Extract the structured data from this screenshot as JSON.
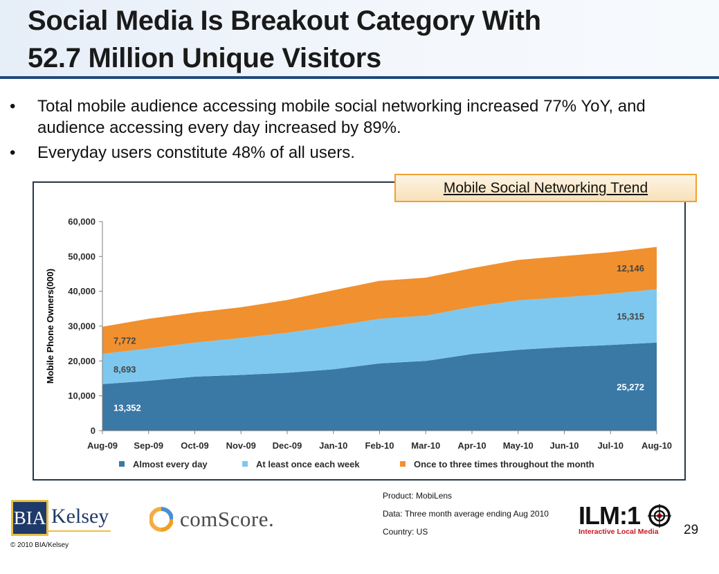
{
  "title": {
    "line1": "Social Media Is Breakout Category With",
    "line2": "52.7 Million Unique Visitors"
  },
  "bullets": [
    {
      "marker": "•",
      "text": "Total mobile audience accessing mobile social networking increased 77% YoY, and audience accessing every day increased by 89%."
    },
    {
      "marker": "•",
      "text": "Everyday users constitute 48% of all users."
    }
  ],
  "trend_box": "Mobile Social Networking Trend",
  "chart_data": {
    "type": "area",
    "stacked": true,
    "title": "Mobile Social Networking Trend",
    "xlabel": "",
    "ylabel": "Mobile Phone Owners(000)",
    "x": [
      "Aug-09",
      "Sep-09",
      "Oct-09",
      "Nov-09",
      "Dec-09",
      "Jan-10",
      "Feb-10",
      "Mar-10",
      "Apr-10",
      "May-10",
      "Jun-10",
      "Jul-10",
      "Aug-10"
    ],
    "ylim": [
      0,
      60000
    ],
    "yticks": [
      0,
      10000,
      20000,
      30000,
      40000,
      50000,
      60000
    ],
    "ytick_labels": [
      "0",
      "10,000",
      "20,000",
      "30,000",
      "40,000",
      "50,000",
      "60,000"
    ],
    "series": [
      {
        "name": "Almost every day",
        "color": "#3a78a6",
        "values": [
          13352,
          14300,
          15500,
          16000,
          16600,
          17600,
          19300,
          20000,
          22000,
          23200,
          24000,
          24600,
          25272
        ]
      },
      {
        "name": "At least once each week",
        "color": "#7ec8ef",
        "values": [
          8693,
          9300,
          9800,
          10600,
          11500,
          12400,
          12800,
          13000,
          13500,
          14200,
          14300,
          14700,
          15315
        ]
      },
      {
        "name": "Once to three times throughout the month",
        "color": "#f0902f",
        "values": [
          7772,
          8500,
          8600,
          8800,
          9400,
          10300,
          10900,
          10900,
          11100,
          11600,
          11800,
          11900,
          12146
        ]
      }
    ],
    "data_labels": [
      {
        "series": 0,
        "index": 0,
        "text": "13,352",
        "color": "#ffffff"
      },
      {
        "series": 1,
        "index": 0,
        "text": "8,693",
        "color": "#444444"
      },
      {
        "series": 2,
        "index": 0,
        "text": "7,772",
        "color": "#444444"
      },
      {
        "series": 0,
        "index": 12,
        "text": "25,272",
        "color": "#ffffff"
      },
      {
        "series": 1,
        "index": 12,
        "text": "15,315",
        "color": "#444444"
      },
      {
        "series": 2,
        "index": 12,
        "text": "12,146",
        "color": "#444444"
      }
    ],
    "legend_position": "bottom",
    "grid": false
  },
  "footer": {
    "product": "Product: MobiLens",
    "data": "Data: Three month average ending Aug 2010",
    "country": "Country: US",
    "page_number": "29",
    "copyright": "© 2010 BIA/Kelsey"
  },
  "logos": {
    "bia_box": "BIA",
    "bia_word": "Kelsey",
    "comscore": "comScore.",
    "ilm": "ILM:1",
    "ilm_sub": "Interactive Local Media",
    "accent_red": "#c8181e",
    "brand_navy": "#1f3a6a",
    "brand_gold": "#e8c040"
  }
}
